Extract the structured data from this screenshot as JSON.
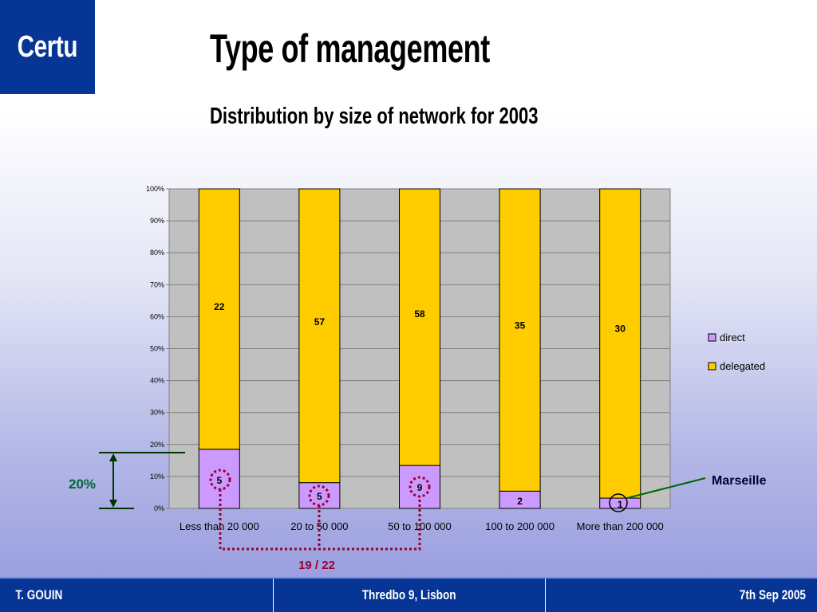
{
  "logo": {
    "text": "Certu"
  },
  "slide": {
    "title": "Type of management",
    "subtitle": "Distribution by size of network for 2003"
  },
  "chart_data": {
    "type": "bar",
    "stacked": "percent",
    "categories": [
      "Less than 20 000",
      "20 to 50 000",
      "50 to 100 000",
      "100 to 200 000",
      "More than 200 000"
    ],
    "series": [
      {
        "name": "direct",
        "values": [
          5,
          5,
          9,
          2,
          1
        ],
        "color": "#cc99ff"
      },
      {
        "name": "delegated",
        "values": [
          22,
          57,
          58,
          35,
          30
        ],
        "color": "#ffcc00"
      }
    ],
    "y_ticks": [
      "0%",
      "10%",
      "20%",
      "30%",
      "40%",
      "50%",
      "60%",
      "70%",
      "80%",
      "90%",
      "100%"
    ],
    "ylim": [
      0,
      100
    ],
    "grid": true,
    "plot_background": "#c0c0c0",
    "legend_placement": "right"
  },
  "annotations": {
    "twenty_percent": "20%",
    "marseille": "Marseille",
    "sum_label": "19 / 22",
    "marker_color": "#990033",
    "arrow_color": "#003300",
    "marseille_line_color": "#006600"
  },
  "footer": {
    "left": "T. GOUIN",
    "center": "Thredbo 9, Lisbon",
    "right": "7th Sep 2005"
  }
}
